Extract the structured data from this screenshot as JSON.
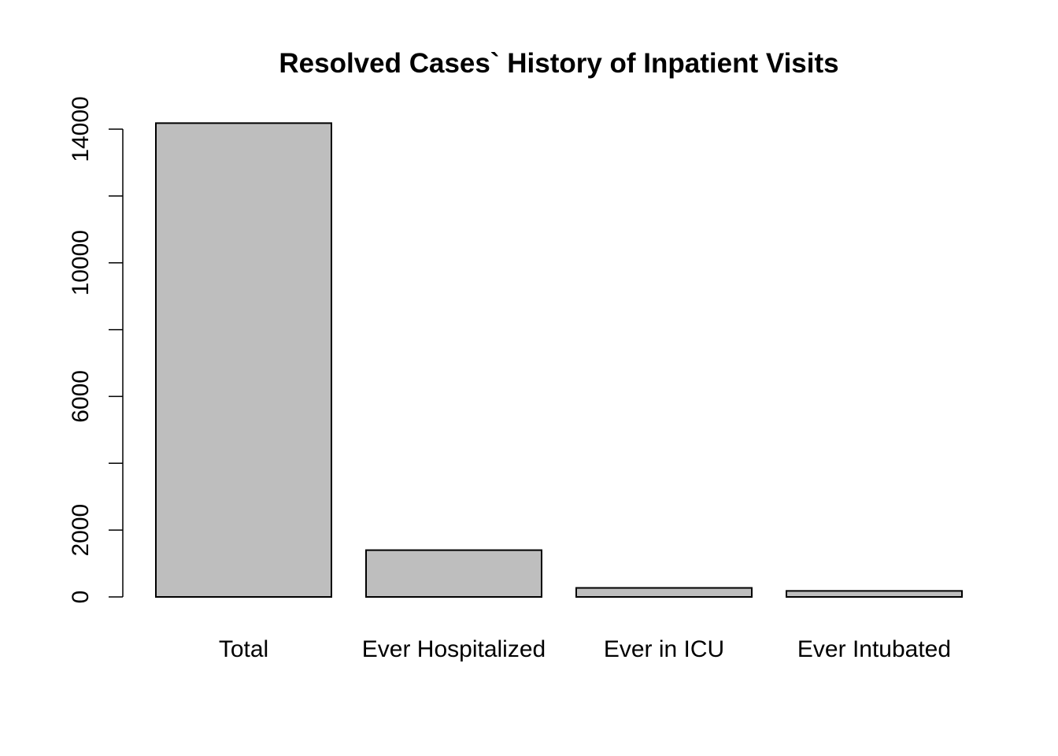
{
  "chart_data": {
    "type": "bar",
    "title": "Resolved Cases` History of Inpatient Visits",
    "xlabel": "",
    "ylabel": "",
    "categories": [
      "Total",
      "Ever Hospitalized",
      "Ever in ICU",
      "Ever Intubated"
    ],
    "values": [
      14180,
      1400,
      270,
      180
    ],
    "ylim": [
      0,
      14000
    ],
    "y_ticks": [
      0,
      2000,
      4000,
      6000,
      8000,
      10000,
      12000,
      14000
    ],
    "y_tick_labels": [
      "0",
      "2000",
      "",
      "6000",
      "",
      "10000",
      "",
      "14000"
    ],
    "grid": false,
    "legend": "none",
    "bar_fill": "#bebebe",
    "bar_stroke": "#000000"
  }
}
